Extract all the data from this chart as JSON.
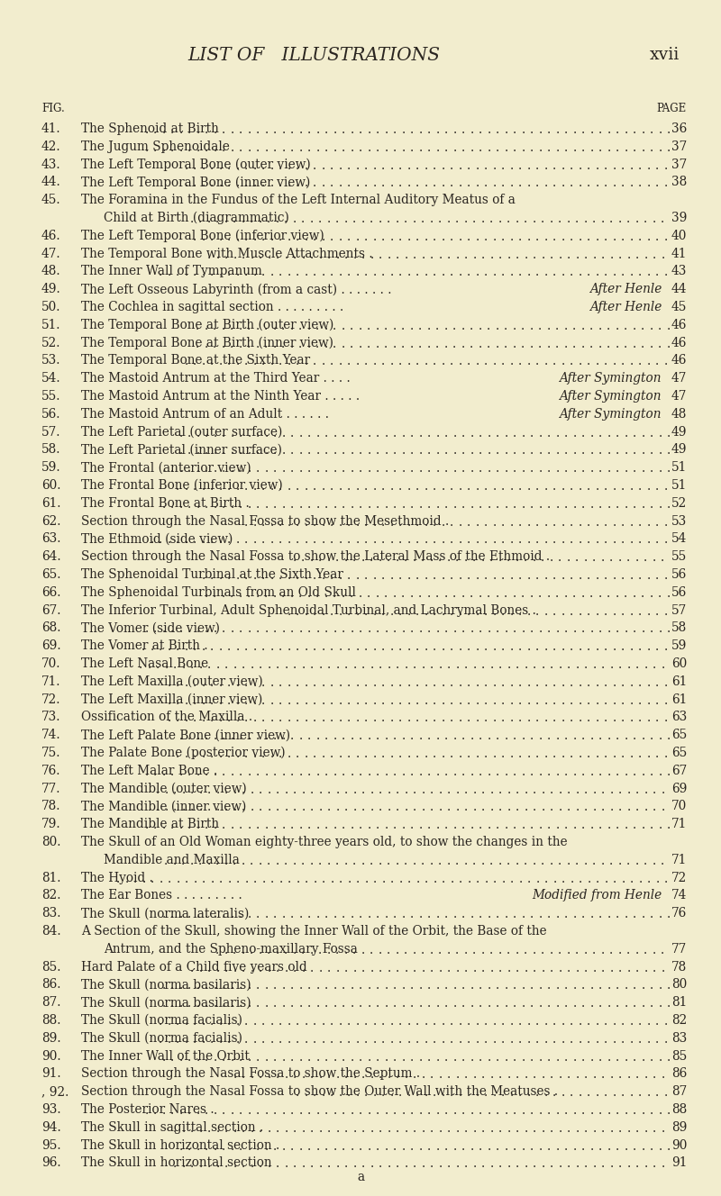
{
  "bg_color": "#f2edce",
  "title": "LIST OF   ILLUSTRATIONS",
  "title_page": "xvii",
  "fig_label": "FIG.",
  "page_label": "PAGE",
  "entries": [
    {
      "num": "41.",
      "text": "The Sphenoid at Birth",
      "attr": "",
      "page": "36",
      "wrap2": ""
    },
    {
      "num": "42.",
      "text": "The Jugum Sphenoidale",
      "attr": "",
      "page": "37",
      "wrap2": ""
    },
    {
      "num": "43.",
      "text": "The Left Temporal Bone (outer view)",
      "attr": "",
      "page": "37",
      "wrap2": ""
    },
    {
      "num": "44.",
      "text": "The Left Temporal Bone (inner view)",
      "attr": "",
      "page": "38",
      "wrap2": ""
    },
    {
      "num": "45.",
      "text": "The Foramina in the Fundus of the Left Internal Auditory Meatus of a",
      "attr": "",
      "page": "",
      "wrap2": "Child at Birth (diagrammatic)",
      "wrap2_page": "39"
    },
    {
      "num": "46.",
      "text": "The Left Temporal Bone (inferior view)",
      "attr": "",
      "page": "40",
      "wrap2": ""
    },
    {
      "num": "47.",
      "text": "The Temporal Bone with Muscle Attachments .",
      "attr": "",
      "page": "41",
      "wrap2": ""
    },
    {
      "num": "48.",
      "text": "The Inner Wall of Tympanum",
      "attr": "",
      "page": "43",
      "wrap2": ""
    },
    {
      "num": "49.",
      "text": "The Left Osseous Labyrinth (from a cast) . . . . . . .",
      "attr": "After Henle",
      "page": "44",
      "wrap2": ""
    },
    {
      "num": "50.",
      "text": "The Cochlea in sagittal section . . . . . . . . .",
      "attr": "After Henle",
      "page": "45",
      "wrap2": ""
    },
    {
      "num": "51.",
      "text": "The Temporal Bone at Birth (outer view)",
      "attr": "",
      "page": "46",
      "wrap2": ""
    },
    {
      "num": "52.",
      "text": "The Temporal Bone at Birth (inner view)",
      "attr": "",
      "page": "46",
      "wrap2": ""
    },
    {
      "num": "53.",
      "text": "The Temporal Bone at the Sixth Year",
      "attr": "",
      "page": "46",
      "wrap2": ""
    },
    {
      "num": "54.",
      "text": "The Mastoid Antrum at the Third Year . . . .",
      "attr": "After Symington",
      "page": "47",
      "wrap2": ""
    },
    {
      "num": "55.",
      "text": "The Mastoid Antrum at the Ninth Year . . . . .",
      "attr": "After Symington",
      "page": "47",
      "wrap2": ""
    },
    {
      "num": "56.",
      "text": "The Mastoid Antrum of an Adult . . . . . .",
      "attr": "After Symington",
      "page": "48",
      "wrap2": ""
    },
    {
      "num": "57.",
      "text": "The Left Parietal (outer surface)",
      "attr": "",
      "page": "49",
      "wrap2": ""
    },
    {
      "num": "58.",
      "text": "The Left Parietal (inner surface)",
      "attr": "",
      "page": "49",
      "wrap2": ""
    },
    {
      "num": "59.",
      "text": "The Frontal (anterior view)",
      "attr": "",
      "page": "51",
      "wrap2": ""
    },
    {
      "num": "60.",
      "text": "The Frontal Bone (inferior view)",
      "attr": "",
      "page": "51",
      "wrap2": ""
    },
    {
      "num": "61.",
      "text": "The Frontal Bone at Birth .",
      "attr": "",
      "page": "52",
      "wrap2": ""
    },
    {
      "num": "62.",
      "text": "Section through the Nasal Fossa to show the Mesethmoid .",
      "attr": "",
      "page": "53",
      "wrap2": ""
    },
    {
      "num": "63.",
      "text": "The Ethmoid (side view)",
      "attr": "",
      "page": "54",
      "wrap2": ""
    },
    {
      "num": "64.",
      "text": "Section through the Nasal Fossa to show the Lateral Mass of the Ethmoid .",
      "attr": "",
      "page": "55",
      "wrap2": ""
    },
    {
      "num": "65.",
      "text": "The Sphenoidal Turbinal at the Sixth Year",
      "attr": "",
      "page": "56",
      "wrap2": ""
    },
    {
      "num": "66.",
      "text": "The Sphenoidal Turbinals from an Old Skull",
      "attr": "",
      "page": "56",
      "wrap2": ""
    },
    {
      "num": "67.",
      "text": "The Inferior Turbinal, Adult Sphenoidal Turbinal, and Lachrymal Bones .",
      "attr": "",
      "page": "57",
      "wrap2": ""
    },
    {
      "num": "68.",
      "text": "The Vomer (side view)",
      "attr": "",
      "page": "58",
      "wrap2": ""
    },
    {
      "num": "69.",
      "text": "The Vomer at Birth .",
      "attr": "",
      "page": "59",
      "wrap2": ""
    },
    {
      "num": "70.",
      "text": "The Left Nasal Bone",
      "attr": "",
      "page": "60",
      "wrap2": ""
    },
    {
      "num": "71.",
      "text": "The Left Maxilla (outer view)",
      "attr": "",
      "page": "61",
      "wrap2": ""
    },
    {
      "num": "72.",
      "text": "The Left Maxilla (inner view)",
      "attr": "",
      "page": "61",
      "wrap2": ""
    },
    {
      "num": "73.",
      "text": "Ossification of the Maxilla .",
      "attr": "",
      "page": "63",
      "wrap2": ""
    },
    {
      "num": "74.",
      "text": "The Left Palate Bone (inner view)",
      "attr": "",
      "page": "65",
      "wrap2": ""
    },
    {
      "num": "75.",
      "text": "The Palate Bone (posterior view)",
      "attr": "",
      "page": "65",
      "wrap2": ""
    },
    {
      "num": "76.",
      "text": "The Left Malar Bone .",
      "attr": "",
      "page": "67",
      "wrap2": ""
    },
    {
      "num": "77.",
      "text": "The Mandible (outer view)",
      "attr": "",
      "page": "69",
      "wrap2": ""
    },
    {
      "num": "78.",
      "text": "The Mandible (inner view)",
      "attr": "",
      "page": "70",
      "wrap2": ""
    },
    {
      "num": "79.",
      "text": "The Mandible at Birth",
      "attr": "",
      "page": "71",
      "wrap2": ""
    },
    {
      "num": "80.",
      "text": "The Skull of an Old Woman eighty-three years old, to show the changes in the",
      "attr": "",
      "page": "",
      "wrap2": "Mandible and Maxilla",
      "wrap2_page": "71"
    },
    {
      "num": "81.",
      "text": "The Hyoid .",
      "attr": "",
      "page": "72",
      "wrap2": ""
    },
    {
      "num": "82.",
      "text": "The Ear Bones . . . . . . . . .",
      "attr": "Modified from Henle",
      "page": "74",
      "wrap2": ""
    },
    {
      "num": "83.",
      "text": "The Skull (norma lateralis)",
      "attr": "",
      "page": "76",
      "wrap2": ""
    },
    {
      "num": "84.",
      "text": "A Section of the Skull, showing the Inner Wall of the Orbit, the Base of the",
      "attr": "",
      "page": "",
      "wrap2": "Antrum, and the Spheno-maxillary Fossa",
      "wrap2_page": "77"
    },
    {
      "num": "85.",
      "text": "Hard Palate of a Child five years old",
      "attr": "",
      "page": "78",
      "wrap2": ""
    },
    {
      "num": "86.",
      "text": "The Skull (norma basilaris)",
      "attr": "",
      "page": "80",
      "wrap2": ""
    },
    {
      "num": "87.",
      "text": "The Skull (norma basilaris)",
      "attr": "",
      "page": "81",
      "wrap2": ""
    },
    {
      "num": "88.",
      "text": "The Skull (norma facialis)",
      "attr": "",
      "page": "82",
      "wrap2": ""
    },
    {
      "num": "89.",
      "text": "The Skull (norma facialis)",
      "attr": "",
      "page": "83",
      "wrap2": ""
    },
    {
      "num": "90.",
      "text": "The Inner Wall of the Orbit",
      "attr": "",
      "page": "85",
      "wrap2": ""
    },
    {
      "num": "91.",
      "text": "Section through the Nasal Fossa to show the Septum .",
      "attr": "",
      "page": "86",
      "wrap2": ""
    },
    {
      "num": ", 92.",
      "text": "Section through the Nasal Fossa to show the Outer Wall with the Meatuses .",
      "attr": "",
      "page": "87",
      "wrap2": ""
    },
    {
      "num": "93.",
      "text": "The Posterior Nares .",
      "attr": "",
      "page": "88",
      "wrap2": ""
    },
    {
      "num": "94.",
      "text": "The Skull in sagittal section .",
      "attr": "",
      "page": "89",
      "wrap2": ""
    },
    {
      "num": "95.",
      "text": "The Skull in horizontal section .",
      "attr": "",
      "page": "90",
      "wrap2": ""
    },
    {
      "num": "96.",
      "text": "The Skull in horizontal section",
      "attr": "",
      "page": "91",
      "wrap2": ""
    }
  ],
  "footer": "a",
  "text_color": "#2a2520",
  "font_size": 9.8,
  "title_font_size": 14.5,
  "header_font_size": 8.5
}
